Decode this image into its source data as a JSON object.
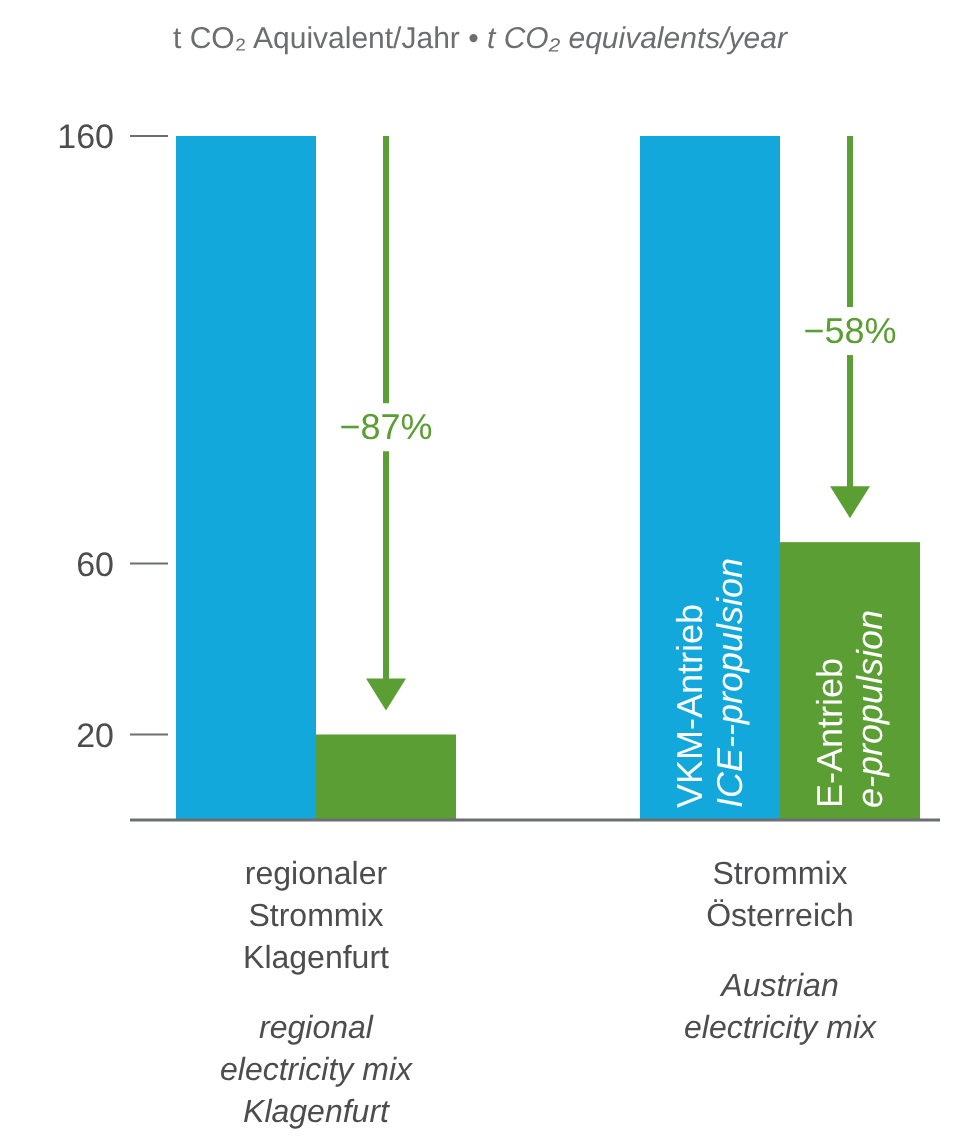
{
  "chart_data": {
    "type": "bar",
    "title": "t CO₂ Aquivalent/Jahr • ",
    "subtitle": "t CO₂ equivalents/year",
    "categories": [
      "regionaler\nStrommix\nKlagenfurt\n\nregional\nelectricity mix\nKlagenfurt",
      "Strommix\nÖsterreich\n\nAustrian\nelectricity mix"
    ],
    "series": [
      {
        "name": "VKM-Antrieb\nICE--propulsion",
        "color": "#12a8dc",
        "values": [
          160,
          160
        ]
      },
      {
        "name": "E-Antrieb\ne-propulsion",
        "color": "#5a9e34",
        "values": [
          20,
          65
        ]
      }
    ],
    "ylim": [
      0,
      160
    ],
    "yticks": [
      20,
      60,
      160
    ],
    "legend": false,
    "annotations": [
      "−87%",
      "−58%"
    ]
  }
}
